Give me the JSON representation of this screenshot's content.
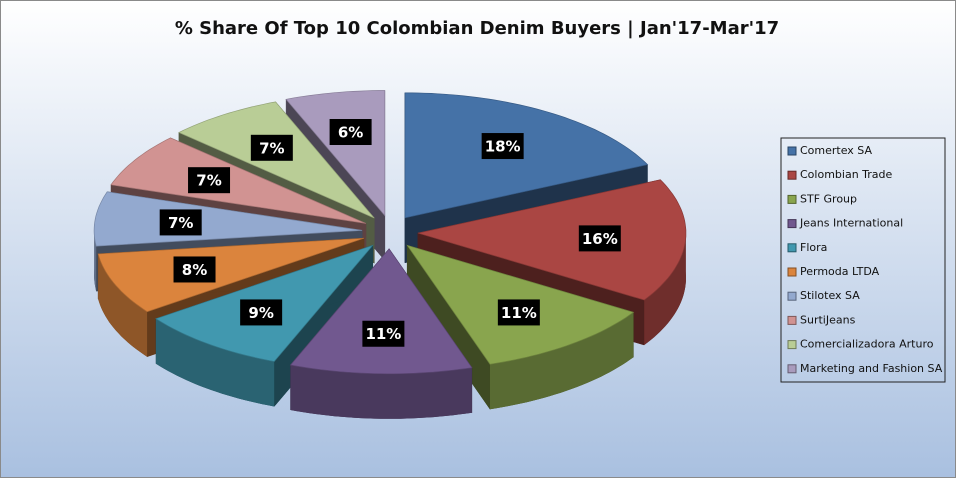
{
  "chart_data": {
    "type": "pie3d",
    "title": "% Share Of Top 10 Colombian Denim Buyers | Jan'17-Mar'17",
    "categories": [
      "Comertex SA",
      "Colombian Trade",
      "STF Group",
      "Jeans International",
      "Flora",
      "Permoda LTDA",
      "Stilotex SA",
      "SurtiJeans",
      "Comercializadora Arturo",
      "Marketing and Fashion SA"
    ],
    "values": [
      18,
      16,
      11,
      11,
      9,
      8,
      7,
      7,
      7,
      6
    ],
    "value_labels": [
      "18%",
      "16%",
      "11%",
      "11%",
      "9%",
      "8%",
      "7%",
      "7%",
      "7%",
      "6%"
    ],
    "colors": [
      "#4572a7",
      "#aa4643",
      "#89a54e",
      "#71588f",
      "#4198af",
      "#db843d",
      "#93a9cf",
      "#d19392",
      "#b9cd96",
      "#a99bbd"
    ],
    "legend": "right"
  }
}
